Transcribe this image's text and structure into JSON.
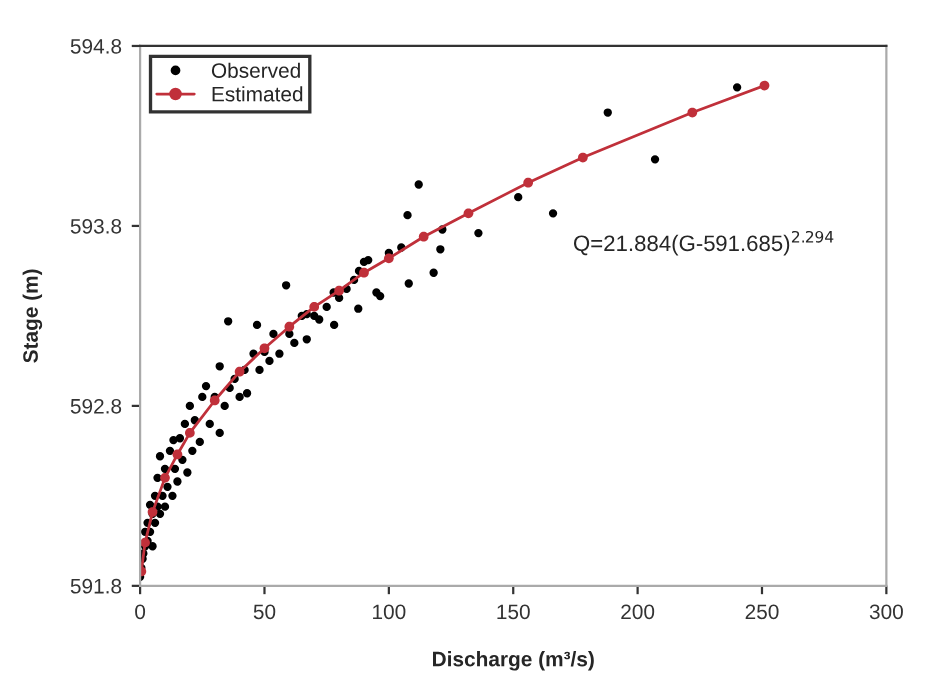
{
  "chart_data": {
    "type": "scatter",
    "xlabel": "Discharge (m³/s)",
    "ylabel": "Stage (m)",
    "annotations": [
      "Q=21.884(G-591.685)$^{2.294}$"
    ],
    "xlim": [
      0,
      300
    ],
    "xticks": [
      0,
      50,
      100,
      150,
      200,
      250,
      300
    ],
    "ylim": [
      591.8,
      594.8
    ],
    "yticks": [
      591.8,
      592.8,
      593.8,
      594.8
    ],
    "grid": false,
    "legend": "top left",
    "series": [
      {
        "name": "Observed",
        "marker": "circle",
        "color": "#000000",
        "x": [
          0,
          0.5,
          1,
          1.3,
          2,
          2,
          3,
          3,
          4,
          4,
          5,
          5,
          6,
          6,
          7,
          7,
          8,
          8,
          9,
          10,
          10,
          11,
          12,
          13,
          13.4,
          14,
          15,
          16,
          17,
          18,
          19,
          20,
          21,
          22,
          24,
          25,
          26.5,
          28,
          30,
          32,
          32,
          34,
          35.4,
          36,
          38,
          40,
          42,
          43,
          45.6,
          47,
          48,
          50,
          52,
          53.6,
          56,
          58.7,
          60,
          62,
          65,
          67,
          67,
          70,
          72,
          75,
          77.8,
          78,
          80,
          83,
          86,
          87.7,
          88,
          90,
          91.7,
          95,
          96.5,
          100,
          105,
          107.5,
          108,
          112,
          118,
          120.7,
          121.5,
          136,
          152,
          166,
          188,
          207,
          240
        ],
        "values": [
          591.85,
          591.9,
          591.95,
          591.98,
          592.02,
          592.1,
          592.05,
          592.15,
          592.1,
          592.25,
          592.02,
          592.2,
          592.15,
          592.3,
          592.24,
          592.4,
          592.2,
          592.52,
          592.3,
          592.24,
          592.45,
          592.35,
          592.55,
          592.3,
          592.61,
          592.45,
          592.38,
          592.62,
          592.5,
          592.7,
          592.43,
          592.8,
          592.55,
          592.72,
          592.6,
          592.85,
          592.91,
          592.7,
          592.85,
          592.65,
          593.02,
          592.8,
          593.27,
          592.9,
          592.95,
          592.85,
          593.0,
          592.87,
          593.09,
          593.25,
          593.0,
          593.1,
          593.05,
          593.2,
          593.09,
          593.47,
          593.2,
          593.15,
          593.3,
          593.17,
          593.31,
          593.3,
          593.28,
          593.35,
          593.43,
          593.25,
          593.4,
          593.45,
          593.5,
          593.34,
          593.55,
          593.6,
          593.61,
          593.43,
          593.41,
          593.65,
          593.68,
          593.86,
          593.48,
          594.03,
          593.54,
          593.67,
          593.78,
          593.76,
          593.96,
          593.87,
          594.43,
          594.17,
          594.57
        ]
      },
      {
        "name": "Estimated",
        "type": "line",
        "marker": "circle",
        "line_style": "solid",
        "color": "#c0303a",
        "x": [
          0.5,
          2,
          5,
          10,
          15,
          20,
          30,
          40,
          50,
          60,
          70,
          80,
          90,
          100,
          114,
          132,
          156,
          178,
          222,
          251
        ],
        "values": [
          591.88,
          592.04,
          592.21,
          592.4,
          592.53,
          592.65,
          592.83,
          592.99,
          593.12,
          593.24,
          593.35,
          593.44,
          593.54,
          593.62,
          593.74,
          593.87,
          594.04,
          594.18,
          594.43,
          594.58
        ]
      }
    ]
  }
}
